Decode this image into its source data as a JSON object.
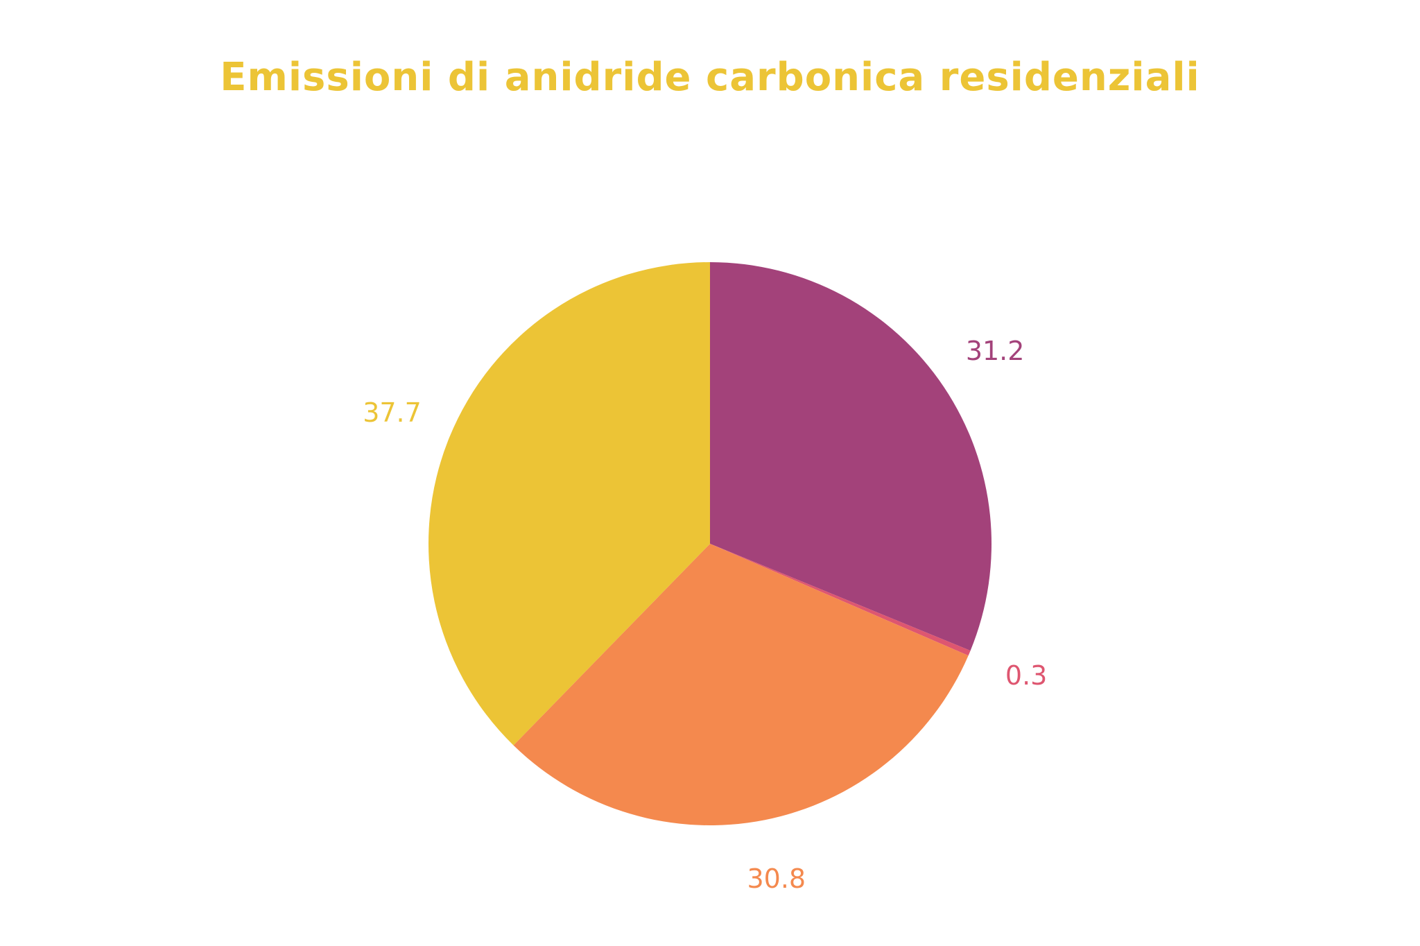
{
  "chart_data": {
    "type": "pie",
    "title": "Emissioni di anidride carbonica residenziali",
    "values": [
      31.2,
      0.3,
      30.8,
      37.7
    ],
    "colors": [
      "#a3427a",
      "#de5670",
      "#f4894e",
      "#ecc436"
    ],
    "title_color": "#ecc436"
  }
}
